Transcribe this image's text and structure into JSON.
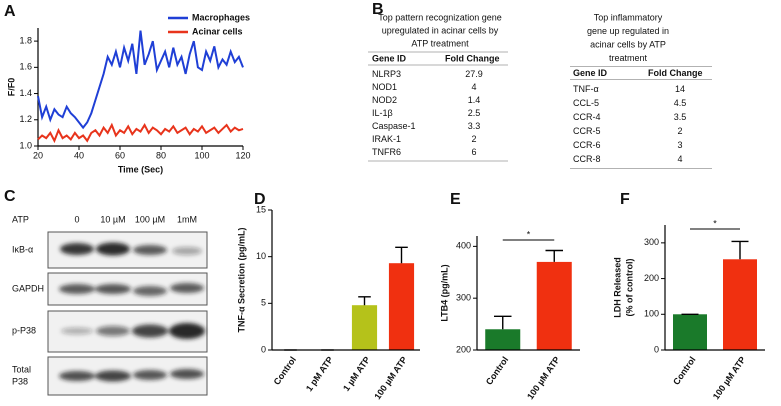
{
  "chart_data": [
    {
      "label": "A",
      "type": "line",
      "xlabel": "Time (Sec)",
      "ylabel": "F/F0",
      "x": [
        20,
        22,
        24,
        26,
        28,
        30,
        32,
        34,
        36,
        38,
        40,
        42,
        44,
        46,
        48,
        50,
        52,
        54,
        56,
        58,
        60,
        62,
        64,
        66,
        68,
        70,
        72,
        74,
        76,
        78,
        80,
        82,
        84,
        86,
        88,
        90,
        92,
        94,
        96,
        98,
        100,
        102,
        104,
        106,
        108,
        110,
        112,
        114,
        116,
        118,
        120
      ],
      "series": [
        {
          "name": "Macrophages",
          "color": "#1f3fd6",
          "values": [
            1.38,
            1.22,
            1.3,
            1.2,
            1.28,
            1.24,
            1.22,
            1.3,
            1.25,
            1.22,
            1.18,
            1.14,
            1.18,
            1.25,
            1.35,
            1.45,
            1.55,
            1.68,
            1.62,
            1.72,
            1.6,
            1.75,
            1.65,
            1.78,
            1.55,
            1.88,
            1.62,
            1.7,
            1.8,
            1.58,
            1.65,
            1.72,
            1.6,
            1.75,
            1.62,
            1.68,
            1.55,
            1.7,
            1.8,
            1.6,
            1.58,
            1.72,
            1.65,
            1.76,
            1.6,
            1.66,
            1.62,
            1.72,
            1.64,
            1.68,
            1.6
          ]
        },
        {
          "name": "Acinar cells",
          "color": "#e8341c",
          "values": [
            1.05,
            1.08,
            1.06,
            1.1,
            1.04,
            1.12,
            1.06,
            1.08,
            1.05,
            1.1,
            1.06,
            1.08,
            1.04,
            1.1,
            1.12,
            1.08,
            1.14,
            1.1,
            1.16,
            1.08,
            1.12,
            1.1,
            1.15,
            1.09,
            1.13,
            1.11,
            1.16,
            1.1,
            1.14,
            1.12,
            1.09,
            1.13,
            1.11,
            1.15,
            1.1,
            1.12,
            1.14,
            1.09,
            1.13,
            1.11,
            1.15,
            1.1,
            1.12,
            1.14,
            1.1,
            1.13,
            1.16,
            1.11,
            1.14,
            1.12,
            1.13
          ]
        }
      ],
      "xlim": [
        20,
        120
      ],
      "xticks": [
        20,
        40,
        60,
        80,
        100,
        120
      ],
      "ylim": [
        1,
        1.9
      ],
      "yticks": [
        {
          "value": 1,
          "label": "1.0"
        },
        1.2,
        1.4,
        1.6,
        1.8
      ]
    },
    {
      "label": "D",
      "type": "bar",
      "ylabel": "TNF-α Secretion (pg/mL)",
      "categories": [
        "Control",
        "1 pM ATP",
        "1 µM ATP",
        "100 µM ATP"
      ],
      "values": [
        0,
        0,
        4.8,
        9.3
      ],
      "errors": [
        0,
        0,
        0.9,
        1.7
      ],
      "colors": [
        "#1a7a2a",
        "#1a7a2a",
        "#b5c21a",
        "#f03010"
      ],
      "ylim": [
        0,
        15
      ],
      "yticks": [
        0,
        5,
        10,
        15
      ]
    },
    {
      "label": "E",
      "type": "bar",
      "ylabel": "LTB4 (pg/mL)",
      "annotation": "*",
      "categories": [
        "Control",
        "100 µM ATP"
      ],
      "values": [
        240,
        370
      ],
      "errors": [
        25,
        22
      ],
      "colors": [
        "#1a7a2a",
        "#f03010"
      ],
      "ylim": [
        200,
        420
      ],
      "yticks": [
        200,
        300,
        400
      ]
    },
    {
      "label": "F",
      "type": "bar",
      "ylabel": [
        "LDH Released",
        "(% of control)"
      ],
      "annotation": "*",
      "categories": [
        "Control",
        "100 µM ATP"
      ],
      "values": [
        100,
        254
      ],
      "errors": [
        0,
        50
      ],
      "colors": [
        "#1a7a2a",
        "#f03010"
      ],
      "ylim": [
        0,
        350
      ],
      "yticks": [
        0,
        100,
        200,
        300
      ]
    }
  ],
  "tables": [
    {
      "label": "B",
      "title": [
        "Top pattern recognization gene",
        "upregulated in acinar cells  by",
        "ATP treatment"
      ],
      "headers": [
        "Gene ID",
        "Fold Change"
      ],
      "rows": [
        [
          "NLRP3",
          27.9
        ],
        [
          "NOD1",
          4
        ],
        [
          "NOD2",
          1.4
        ],
        [
          "IL-1β",
          2.5
        ],
        [
          "Caspase-1",
          3.3
        ],
        [
          "IRAK-1",
          2
        ],
        [
          "TNFR6",
          6
        ]
      ]
    },
    {
      "title": [
        "Top inflammatory",
        "gene up regulated in",
        "acinar cells by ATP",
        "treatment"
      ],
      "headers": [
        "Gene ID",
        "Fold Change"
      ],
      "rows": [
        [
          "TNF-α",
          14
        ],
        [
          "CCL-5",
          4.5
        ],
        [
          "CCR-4",
          3.5
        ],
        [
          "CCR-5",
          2
        ],
        [
          "CCR-6",
          3
        ],
        [
          "CCR-8",
          4
        ]
      ]
    }
  ],
  "blot": {
    "label": "C",
    "treatment": "ATP",
    "lanes": [
      "0",
      "10 µM",
      "100 µM",
      "1mM"
    ],
    "rows": [
      [
        "IκB-α"
      ],
      [
        "GAPDH"
      ],
      [
        "p-P38"
      ],
      [
        "Total",
        "P38"
      ]
    ]
  }
}
